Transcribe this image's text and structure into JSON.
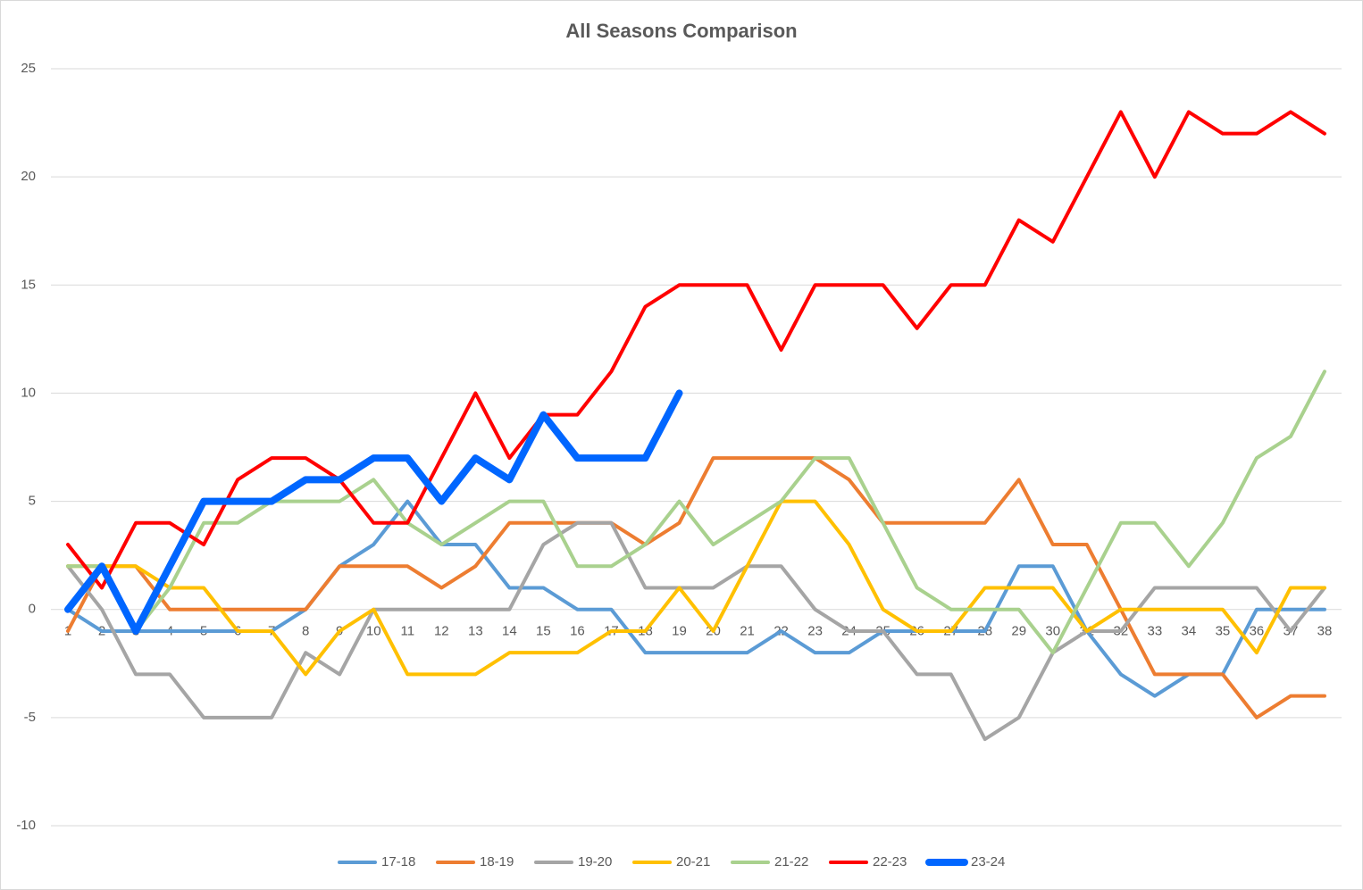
{
  "chart_data": {
    "type": "line",
    "title": "All Seasons Comparison",
    "categories": [
      "1",
      "2",
      "3",
      "4",
      "5",
      "6",
      "7",
      "8",
      "9",
      "10",
      "11",
      "12",
      "13",
      "14",
      "15",
      "16",
      "17",
      "18",
      "19",
      "20",
      "21",
      "22",
      "23",
      "24",
      "25",
      "26",
      "27",
      "28",
      "29",
      "30",
      "31",
      "32",
      "33",
      "34",
      "35",
      "36",
      "37",
      "38"
    ],
    "ylim": [
      -10,
      25
    ],
    "yticks": [
      -10,
      -5,
      0,
      5,
      10,
      15,
      20,
      25
    ],
    "grid": true,
    "legend": "bottom",
    "series": [
      {
        "name": "17-18",
        "color": "#5b9bd5",
        "line_width": 4,
        "values": [
          0,
          -1,
          -1,
          -1,
          -1,
          -1,
          -1,
          0,
          2,
          3,
          5,
          3,
          3,
          1,
          1,
          0,
          0,
          -2,
          -2,
          -2,
          -2,
          -1,
          -2,
          -2,
          -1,
          -1,
          -1,
          -1,
          2,
          2,
          -1,
          -3,
          -4,
          -3,
          -3,
          0,
          0,
          0
        ]
      },
      {
        "name": "18-19",
        "color": "#ed7d31",
        "line_width": 4,
        "values": [
          -1,
          2,
          2,
          0,
          0,
          0,
          0,
          0,
          2,
          2,
          2,
          1,
          2,
          4,
          4,
          4,
          4,
          3,
          4,
          7,
          7,
          7,
          7,
          6,
          4,
          4,
          4,
          4,
          6,
          3,
          3,
          0,
          -3,
          -3,
          -3,
          -5,
          -4,
          -4
        ]
      },
      {
        "name": "19-20",
        "color": "#a5a5a5",
        "line_width": 4,
        "values": [
          2,
          0,
          -3,
          -3,
          -5,
          -5,
          -5,
          -2,
          -3,
          0,
          0,
          0,
          0,
          0,
          3,
          4,
          4,
          1,
          1,
          1,
          2,
          2,
          0,
          -1,
          -1,
          -3,
          -3,
          -6,
          -5,
          -2,
          -1,
          -1,
          1,
          1,
          1,
          1,
          -1,
          1
        ]
      },
      {
        "name": "20-21",
        "color": "#ffc000",
        "line_width": 4,
        "values": [
          2,
          2,
          2,
          1,
          1,
          -1,
          -1,
          -3,
          -1,
          0,
          -3,
          -3,
          -3,
          -2,
          -2,
          -2,
          -1,
          -1,
          1,
          -1,
          2,
          5,
          5,
          3,
          0,
          -1,
          -1,
          1,
          1,
          1,
          -1,
          0,
          0,
          0,
          0,
          -2,
          1,
          1
        ]
      },
      {
        "name": "21-22",
        "color": "#a9d18e",
        "line_width": 4,
        "values": [
          2,
          2,
          -1,
          1,
          4,
          4,
          5,
          5,
          5,
          6,
          4,
          3,
          4,
          5,
          5,
          2,
          2,
          3,
          5,
          3,
          4,
          5,
          7,
          7,
          4,
          1,
          0,
          0,
          0,
          -2,
          1,
          4,
          4,
          2,
          4,
          7,
          8,
          11
        ]
      },
      {
        "name": "22-23",
        "color": "#ff0000",
        "line_width": 4,
        "values": [
          3,
          1,
          4,
          4,
          3,
          6,
          7,
          7,
          6,
          4,
          4,
          7,
          10,
          7,
          9,
          9,
          11,
          14,
          15,
          15,
          15,
          12,
          15,
          15,
          15,
          13,
          15,
          15,
          18,
          17,
          20,
          23,
          20,
          23,
          22,
          22,
          23,
          22
        ]
      },
      {
        "name": "23-24",
        "color": "#0066ff",
        "line_width": 8,
        "values": [
          0,
          2,
          -1,
          2,
          5,
          5,
          5,
          6,
          6,
          7,
          7,
          5,
          7,
          6,
          9,
          7,
          7,
          7,
          10,
          null,
          null,
          null,
          null,
          null,
          null,
          null,
          null,
          null,
          null,
          null,
          null,
          null,
          null,
          null,
          null,
          null,
          null,
          null
        ]
      }
    ]
  }
}
